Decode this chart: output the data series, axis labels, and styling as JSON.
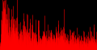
{
  "background_color": "#000000",
  "line_color": "#ff0000",
  "fig_width": 1.2,
  "fig_height": 0.62,
  "dpi": 100,
  "num_points": 1140,
  "seed": 7,
  "xlim": [
    0,
    1140
  ],
  "ylim": [
    0,
    10
  ]
}
